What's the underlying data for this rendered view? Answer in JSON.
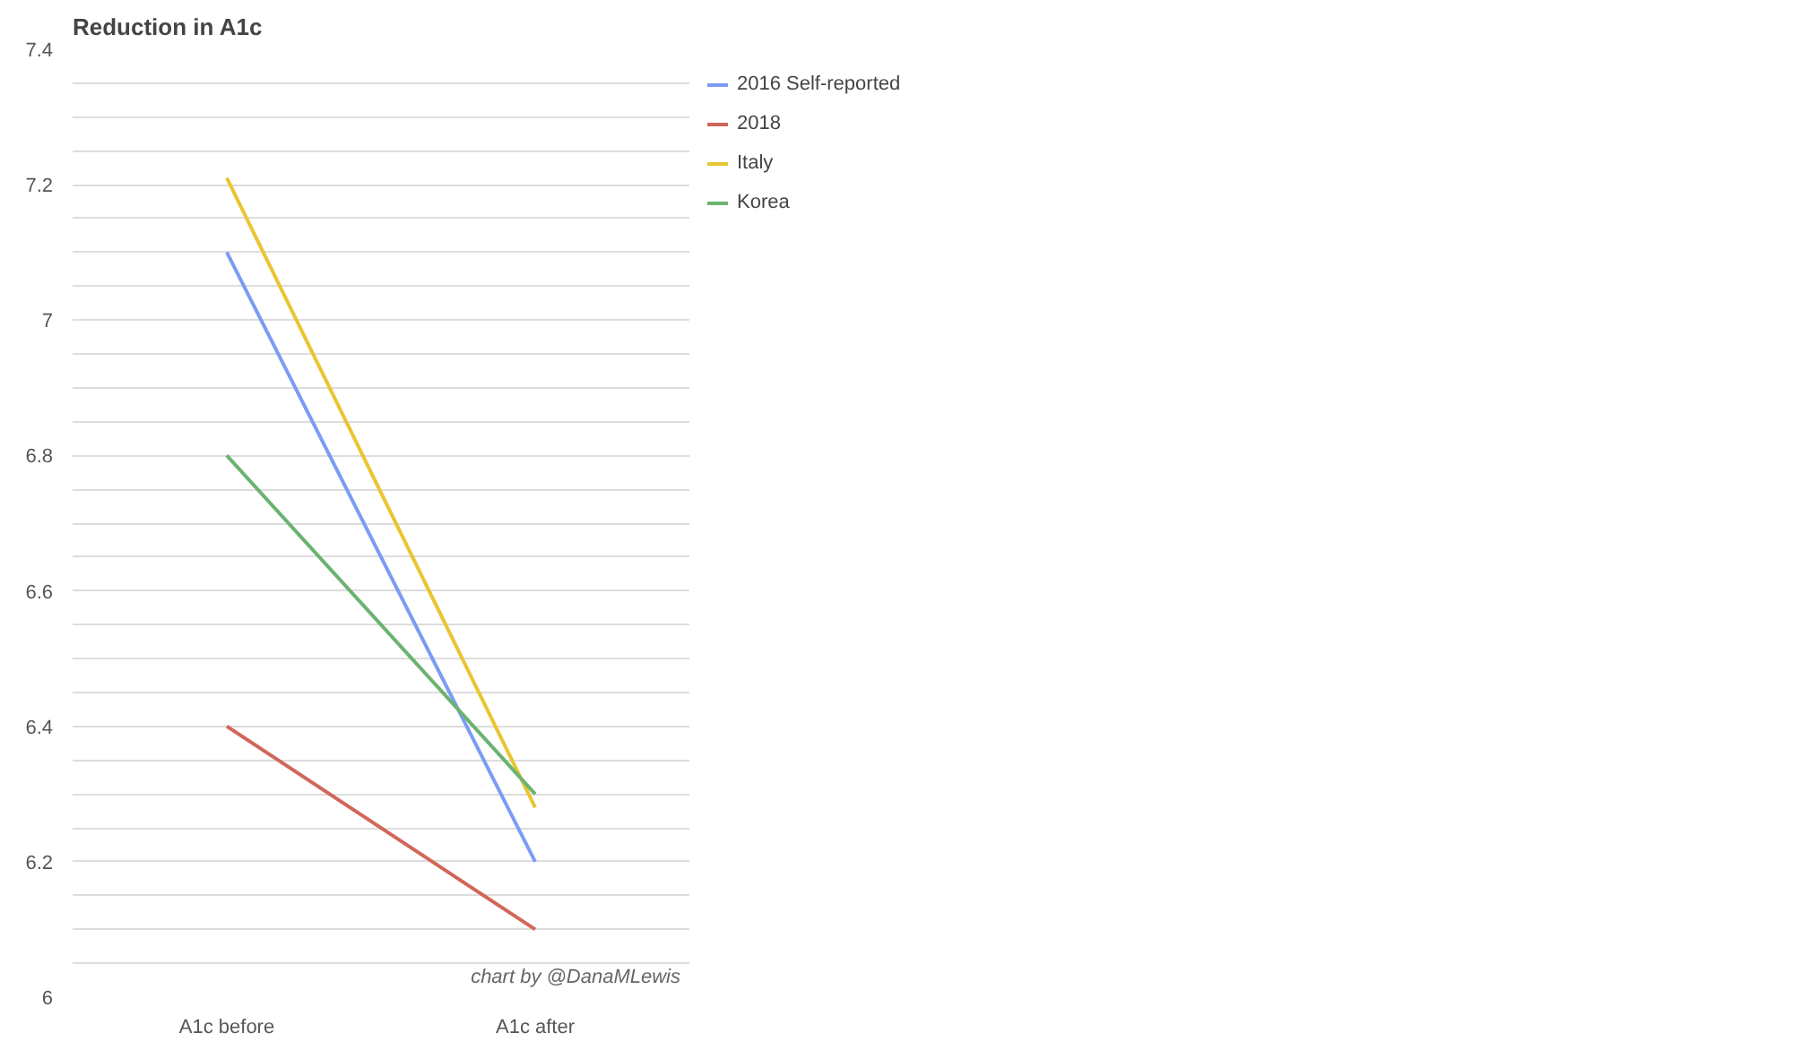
{
  "chart_data": {
    "type": "line",
    "title": "Reduction in A1c",
    "categories": [
      "A1c before",
      "A1c after"
    ],
    "series": [
      {
        "name": "2016 Self-reported",
        "color": "#7b9cf5",
        "values": [
          7.1,
          6.2
        ]
      },
      {
        "name": "2018",
        "color": "#d1675a",
        "values": [
          6.4,
          6.1
        ]
      },
      {
        "name": "Italy",
        "color": "#e8c630",
        "values": [
          7.21,
          6.28
        ]
      },
      {
        "name": "Korea",
        "color": "#6bb36f",
        "values": [
          6.8,
          6.3
        ]
      }
    ],
    "ylim": [
      6,
      7.4
    ],
    "yticks": [
      6,
      {
        "value": 6.05,
        "label": null
      },
      {
        "value": 6.1,
        "label": null
      },
      {
        "value": 6.15,
        "label": null
      },
      6.2,
      {
        "value": 6.25,
        "label": null
      },
      {
        "value": 6.3,
        "label": null
      },
      {
        "value": 6.35,
        "label": null
      },
      6.4,
      {
        "value": 6.45,
        "label": null
      },
      {
        "value": 6.5,
        "label": null
      },
      {
        "value": 6.55,
        "label": null
      },
      6.6,
      {
        "value": 6.65,
        "label": null
      },
      {
        "value": 6.7,
        "label": null
      },
      {
        "value": 6.75,
        "label": null
      },
      6.8,
      {
        "value": 6.85,
        "label": null
      },
      {
        "value": 6.9,
        "label": null
      },
      {
        "value": 6.95,
        "label": null
      },
      {
        "value": 7,
        "label": "7"
      },
      {
        "value": 7.05,
        "label": null
      },
      {
        "value": 7.1,
        "label": null
      },
      {
        "value": 7.15,
        "label": null
      },
      7.2,
      {
        "value": 7.25,
        "label": null
      },
      {
        "value": 7.3,
        "label": null
      },
      {
        "value": 7.35,
        "label": null
      },
      7.4
    ],
    "grid": "y",
    "legend": "top right",
    "marker": "none",
    "line_style": "solid",
    "annotations": [
      "chart by @DanaMLewis"
    ]
  }
}
